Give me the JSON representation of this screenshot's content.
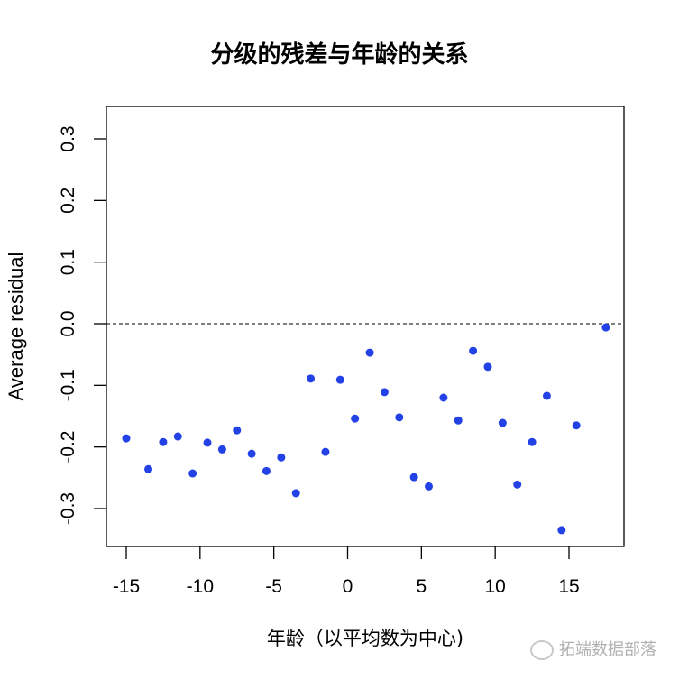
{
  "chart_data": {
    "type": "scatter",
    "title": "分级的残差与年龄的关系",
    "xlabel": "年龄（以平均数为中心)",
    "ylabel": "Average residual",
    "xlim": [
      -15.7,
      18.6
    ],
    "ylim": [
      -0.36,
      0.355
    ],
    "x_ticks": [
      -15,
      -10,
      -5,
      0,
      5,
      10,
      15
    ],
    "x_tick_labels": [
      "-15",
      "-10",
      "-5",
      "0",
      "5",
      "10",
      "15"
    ],
    "y_ticks": [
      -0.3,
      -0.2,
      -0.1,
      0.0,
      0.1,
      0.2,
      0.3
    ],
    "y_tick_labels": [
      "-0.3",
      "-0.2",
      "-0.1",
      "0.0",
      "0.1",
      "0.2",
      "0.3"
    ],
    "grid": false,
    "legend": null,
    "reference_line": {
      "y": 0.0,
      "style": "dashed",
      "color": "#000000"
    },
    "point_color": "#2342e6",
    "series": [
      {
        "name": "Average residual",
        "x": [
          -15,
          -13.5,
          -12.5,
          -11.5,
          -10.5,
          -9.5,
          -8.5,
          -7.5,
          -6.5,
          -5.5,
          -4.5,
          -3.5,
          -2.5,
          -1.5,
          -0.5,
          0.5,
          1.5,
          2.5,
          3.5,
          4.5,
          5.5,
          6.5,
          7.5,
          8.5,
          9.5,
          10.5,
          11.5,
          12.5,
          13.5,
          14.5,
          15.5,
          17.5
        ],
        "y": [
          -0.186,
          -0.236,
          -0.192,
          -0.183,
          -0.243,
          -0.193,
          -0.204,
          -0.173,
          -0.211,
          -0.239,
          -0.217,
          -0.275,
          -0.089,
          -0.208,
          -0.091,
          -0.154,
          -0.047,
          -0.111,
          -0.152,
          -0.249,
          -0.264,
          -0.12,
          -0.157,
          -0.044,
          -0.07,
          -0.161,
          -0.261,
          -0.192,
          -0.117,
          -0.335,
          -0.165,
          -0.006
        ]
      }
    ]
  },
  "watermark": "拓端数据部落"
}
